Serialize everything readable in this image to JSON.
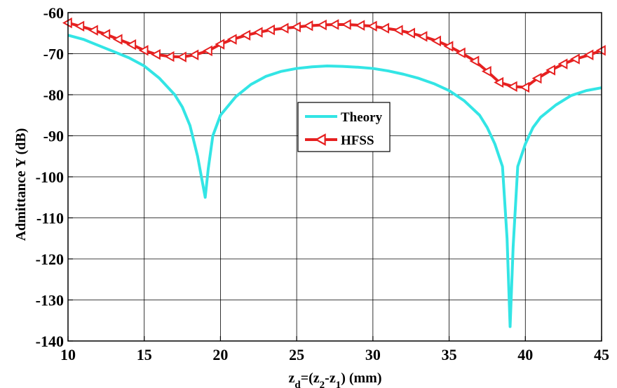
{
  "chart_data": {
    "type": "line",
    "title": "",
    "xlabel": "z_d=(z_2-z_1) (mm)",
    "ylabel": "Admittance Y (dB)",
    "xlim": [
      10,
      45
    ],
    "ylim": [
      -140,
      -60
    ],
    "xticks": [
      10,
      15,
      20,
      25,
      30,
      35,
      40,
      45
    ],
    "yticks": [
      -60,
      -70,
      -80,
      -90,
      -100,
      -110,
      -120,
      -130,
      -140
    ],
    "grid": true,
    "legend": "center",
    "series": [
      {
        "name": "Theory",
        "color": "#33e5e5",
        "marker": "none",
        "x": [
          10,
          11,
          12,
          13,
          14,
          15,
          16,
          17,
          17.5,
          18,
          18.5,
          18.8,
          19,
          19.2,
          19.5,
          20,
          21,
          22,
          23,
          24,
          25,
          26,
          27,
          28,
          29,
          30,
          31,
          32,
          33,
          34,
          35,
          36,
          37,
          37.5,
          38,
          38.5,
          38.8,
          39,
          39.2,
          39.5,
          40,
          40.5,
          41,
          42,
          43,
          44,
          45
        ],
        "values": [
          -65.5,
          -66.5,
          -68,
          -69.5,
          -71,
          -73,
          -76,
          -80,
          -83,
          -87.5,
          -95,
          -101,
          -105,
          -98,
          -90,
          -85,
          -80.5,
          -77.5,
          -75.5,
          -74.3,
          -73.6,
          -73.2,
          -73,
          -73.1,
          -73.3,
          -73.6,
          -74.2,
          -75,
          -76,
          -77.3,
          -79,
          -81.5,
          -85,
          -88,
          -92,
          -97.5,
          -115,
          -136.5,
          -117,
          -97.5,
          -92,
          -88,
          -85.5,
          -82.5,
          -80.2,
          -79,
          -78.3
        ]
      },
      {
        "name": "HFSS",
        "color": "#e62020",
        "marker": "left-triangle",
        "x": [
          10,
          10.8,
          11.7,
          12.5,
          13.3,
          14.2,
          15,
          15.8,
          16.7,
          17.5,
          18.3,
          19.2,
          20,
          20.8,
          21.7,
          22.5,
          23.3,
          24.2,
          25,
          25.8,
          26.7,
          27.5,
          28.3,
          29.2,
          30,
          30.8,
          31.7,
          32.5,
          33.3,
          34.2,
          35,
          35.8,
          36.7,
          37.5,
          38.3,
          39.2,
          40,
          40.8,
          41.7,
          42.5,
          43.3,
          44.2,
          45
        ],
        "values": [
          -62.5,
          -63.3,
          -64.3,
          -65.3,
          -66.5,
          -67.8,
          -69.2,
          -70.2,
          -70.7,
          -70.8,
          -70.3,
          -69.3,
          -67.7,
          -66.5,
          -65.5,
          -64.8,
          -64.2,
          -63.8,
          -63.5,
          -63.2,
          -63,
          -62.9,
          -62.9,
          -63.1,
          -63.3,
          -63.8,
          -64.3,
          -65,
          -65.8,
          -66.9,
          -68.2,
          -69.8,
          -71.8,
          -74.3,
          -77,
          -78,
          -78.2,
          -76,
          -74,
          -72.5,
          -71.3,
          -70.3,
          -69.2
        ]
      }
    ]
  }
}
